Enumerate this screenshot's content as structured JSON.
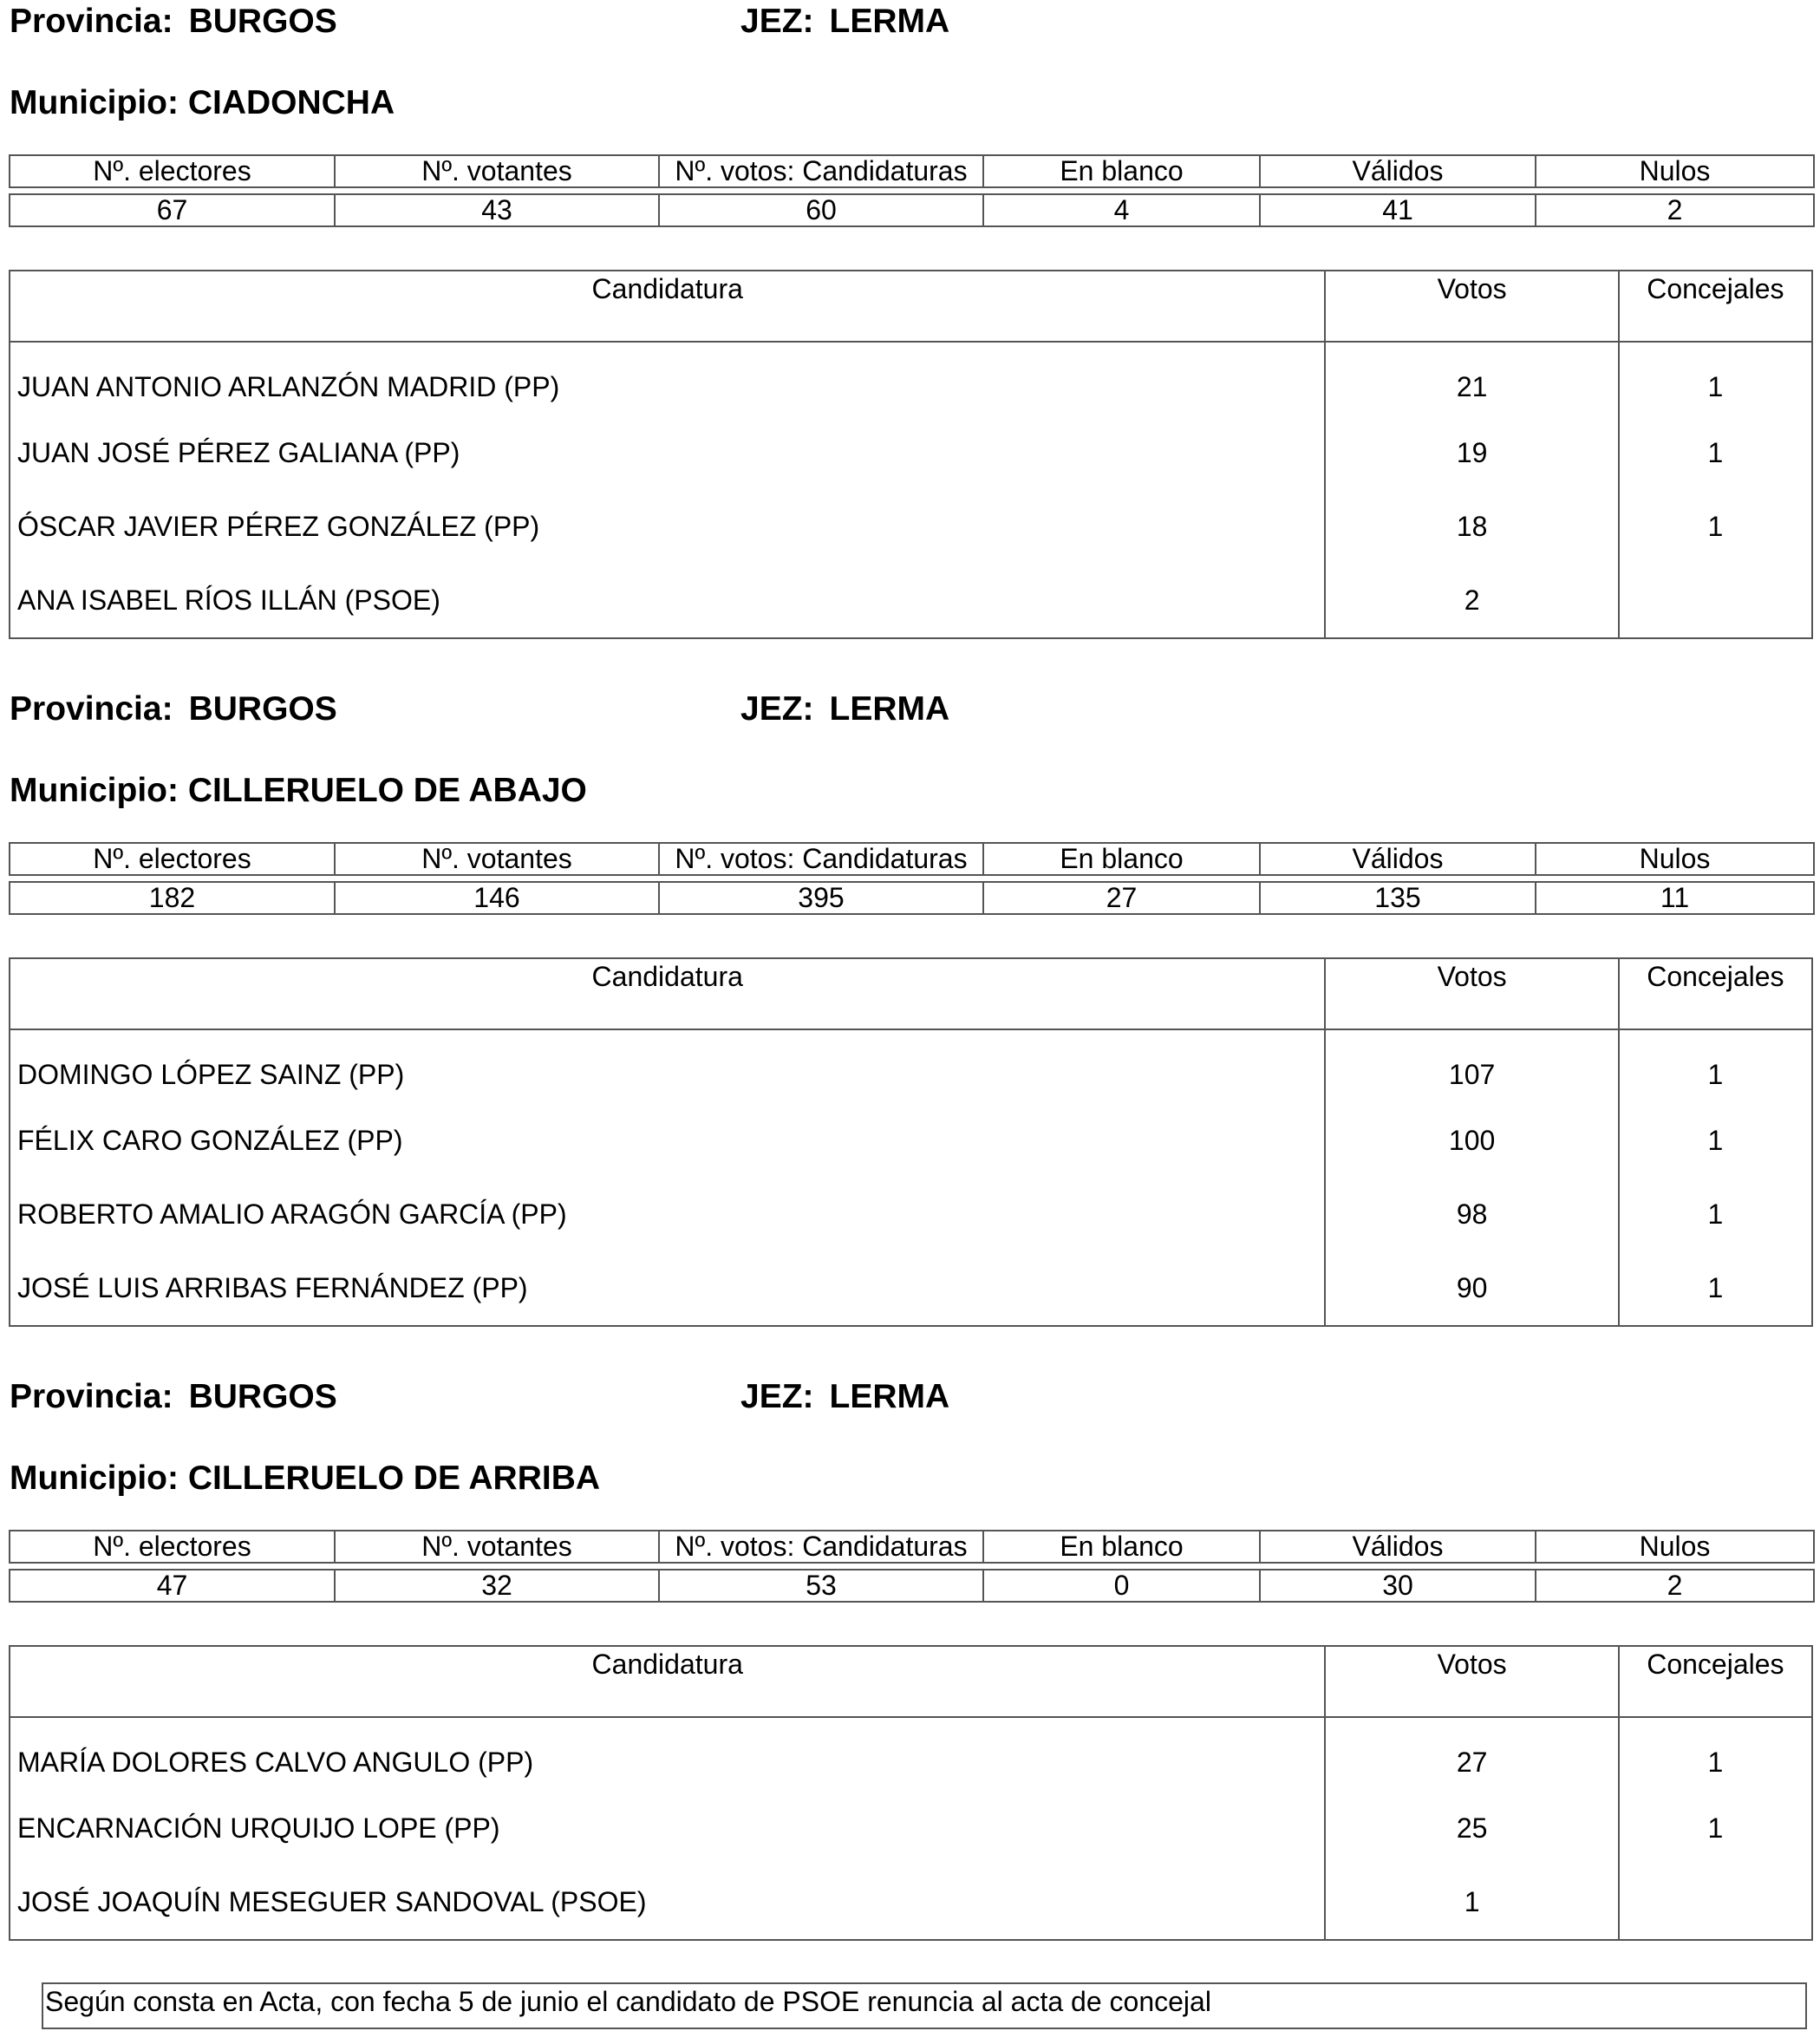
{
  "labels": {
    "provincia": "Provincia:",
    "jez": "JEZ:",
    "municipio": "Municipio:",
    "stats_headers": [
      "Nº. electores",
      "Nº. votantes",
      "Nº. votos: Candidaturas",
      "En blanco",
      "Válidos",
      "Nulos"
    ],
    "cand_headers": [
      "Candidatura",
      "Votos",
      "Concejales"
    ]
  },
  "sections": [
    {
      "provincia": "BURGOS",
      "jez": "LERMA",
      "municipio": "CIADONCHA",
      "stats": [
        "67",
        "43",
        "60",
        "4",
        "41",
        "2"
      ],
      "candidatos": [
        {
          "nombre": "JUAN ANTONIO ARLANZÓN MADRID (PP)",
          "votos": "21",
          "concejales": "1"
        },
        {
          "nombre": "JUAN JOSÉ PÉREZ GALIANA (PP)",
          "votos": "19",
          "concejales": "1"
        },
        {
          "nombre": "ÓSCAR JAVIER PÉREZ GONZÁLEZ (PP)",
          "votos": "18",
          "concejales": "1"
        },
        {
          "nombre": "ANA ISABEL RÍOS ILLÁN (PSOE)",
          "votos": "2",
          "concejales": ""
        }
      ]
    },
    {
      "provincia": "BURGOS",
      "jez": "LERMA",
      "municipio": "CILLERUELO DE ABAJO",
      "stats": [
        "182",
        "146",
        "395",
        "27",
        "135",
        "11"
      ],
      "candidatos": [
        {
          "nombre": "DOMINGO LÓPEZ SAINZ (PP)",
          "votos": "107",
          "concejales": "1"
        },
        {
          "nombre": "FÉLIX CARO GONZÁLEZ (PP)",
          "votos": "100",
          "concejales": "1"
        },
        {
          "nombre": "ROBERTO AMALIO ARAGÓN GARCÍA (PP)",
          "votos": "98",
          "concejales": "1"
        },
        {
          "nombre": "JOSÉ LUIS ARRIBAS FERNÁNDEZ (PP)",
          "votos": "90",
          "concejales": "1"
        }
      ]
    },
    {
      "provincia": "BURGOS",
      "jez": "LERMA",
      "municipio": "CILLERUELO DE ARRIBA",
      "stats": [
        "47",
        "32",
        "53",
        "0",
        "30",
        "2"
      ],
      "candidatos": [
        {
          "nombre": "MARÍA DOLORES CALVO ANGULO (PP)",
          "votos": "27",
          "concejales": "1"
        },
        {
          "nombre": "ENCARNACIÓN URQUIJO LOPE (PP)",
          "votos": "25",
          "concejales": "1"
        },
        {
          "nombre": "JOSÉ JOAQUÍN MESEGUER SANDOVAL (PSOE)",
          "votos": "1",
          "concejales": ""
        }
      ]
    }
  ],
  "note": "Según consta en Acta, con fecha 5 de junio el candidato de PSOE renuncia al acta de concejal"
}
